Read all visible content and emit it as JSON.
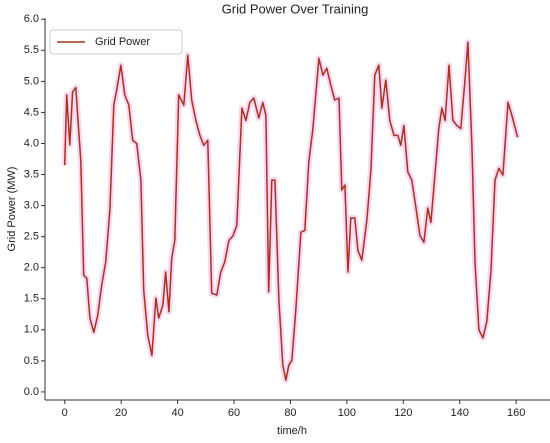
{
  "chart_data": {
    "type": "line",
    "title": "Grid Power Over Training",
    "xlabel": "time/h",
    "ylabel": "Grid Power (MW)",
    "x": [
      0,
      0.7,
      1.8,
      2.8,
      3.9,
      5.7,
      6.7,
      7.8,
      8.9,
      10.3,
      11.7,
      13.1,
      14.5,
      16,
      17.4,
      18.4,
      19.9,
      21.3,
      22.7,
      24.1,
      25.5,
      27,
      28,
      29.4,
      30.9,
      32.3,
      33.3,
      34.8,
      35.8,
      36.9,
      37.9,
      39,
      40.4,
      42.2,
      43.6,
      45,
      46.5,
      47.9,
      49.3,
      50.7,
      52.1,
      53.9,
      55.3,
      56.7,
      58.2,
      59.6,
      61,
      62.8,
      64.2,
      65.6,
      67,
      68.8,
      70.2,
      71.3,
      72.3,
      73.4,
      74.5,
      75.9,
      77.3,
      78.4,
      79.4,
      80.5,
      81.9,
      83.7,
      85.1,
      86.5,
      87.9,
      90.1,
      91.5,
      92.9,
      94.3,
      95.7,
      97.2,
      98.2,
      99.3,
      100.4,
      101.4,
      102.8,
      103.9,
      105.3,
      107.1,
      108.5,
      109.9,
      111.3,
      112.4,
      113.8,
      115.2,
      116.7,
      118.1,
      119.1,
      120.2,
      121.6,
      123,
      124.5,
      125.9,
      127.3,
      128.7,
      129.8,
      131.2,
      132.6,
      133.7,
      134.8,
      136.2,
      137.6,
      139,
      140.4,
      141.8,
      142.9,
      144.3,
      145.4,
      146.8,
      148.2,
      149.6,
      151.1,
      152.5,
      153.9,
      155.3,
      157.1,
      158.5,
      160.5
    ],
    "series": [
      {
        "name": "Grid Power",
        "color": "#a8321e",
        "values": [
          3.65,
          4.78,
          3.98,
          4.83,
          4.9,
          3.72,
          1.88,
          1.83,
          1.19,
          0.96,
          1.24,
          1.72,
          2.09,
          2.93,
          4.62,
          4.86,
          5.26,
          4.78,
          4.62,
          4.05,
          4.0,
          3.41,
          1.64,
          0.92,
          0.59,
          1.51,
          1.19,
          1.4,
          1.93,
          1.29,
          2.15,
          2.44,
          4.78,
          4.62,
          5.42,
          4.7,
          4.37,
          4.13,
          3.97,
          4.05,
          1.59,
          1.56,
          1.93,
          2.09,
          2.44,
          2.51,
          2.68,
          4.57,
          4.37,
          4.66,
          4.73,
          4.41,
          4.66,
          4.45,
          1.61,
          3.41,
          3.41,
          1.48,
          0.43,
          0.19,
          0.43,
          0.51,
          1.32,
          2.57,
          2.6,
          3.7,
          4.21,
          5.37,
          5.1,
          5.21,
          4.94,
          4.7,
          4.73,
          3.25,
          3.33,
          1.93,
          2.8,
          2.8,
          2.28,
          2.12,
          2.77,
          3.57,
          5.1,
          5.26,
          4.57,
          5.02,
          4.37,
          4.13,
          4.13,
          3.97,
          4.29,
          3.54,
          3.41,
          2.96,
          2.52,
          2.41,
          2.96,
          2.73,
          3.49,
          4.24,
          4.57,
          4.37,
          5.26,
          4.37,
          4.29,
          4.24,
          4.98,
          5.63,
          3.97,
          2.09,
          1.0,
          0.87,
          1.13,
          1.96,
          3.41,
          3.6,
          3.49,
          4.66,
          4.45,
          4.1
        ]
      }
    ],
    "xlim": [
      -7,
      172
    ],
    "ylim": [
      -0.13,
      6.02
    ],
    "xticks": [
      0,
      20,
      40,
      60,
      80,
      100,
      120,
      140,
      160
    ],
    "yticks": [
      {
        "value": 0,
        "label": "0.0"
      },
      {
        "value": 0.5,
        "label": "0.5"
      },
      {
        "value": 1,
        "label": "1.0"
      },
      {
        "value": 1.5,
        "label": "1.5"
      },
      {
        "value": 2,
        "label": "2.0"
      },
      {
        "value": 2.5,
        "label": "2.5"
      },
      {
        "value": 3,
        "label": "3.0"
      },
      {
        "value": 3.5,
        "label": "3.5"
      },
      {
        "value": 4,
        "label": "4.0"
      },
      {
        "value": 4.5,
        "label": "4.5"
      },
      {
        "value": 5,
        "label": "5.0"
      },
      {
        "value": 5.5,
        "label": "5.5"
      },
      {
        "value": 6,
        "label": "6.0"
      }
    ],
    "legend": "upper left"
  }
}
